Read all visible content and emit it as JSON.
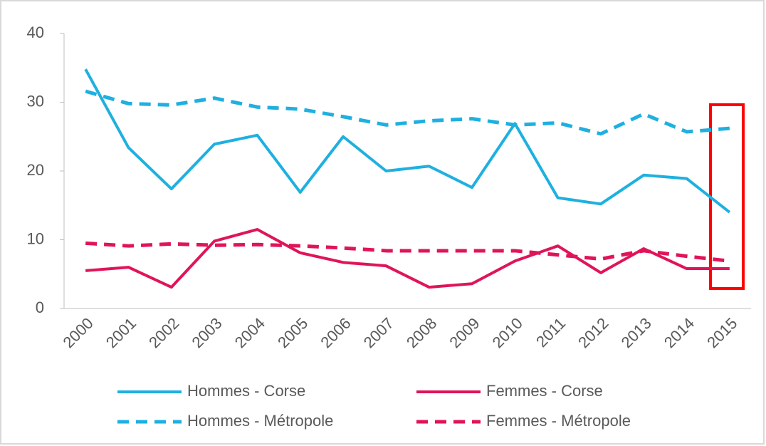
{
  "chart_data": {
    "type": "line",
    "categories": [
      "2000",
      "2001",
      "2002",
      "2003",
      "2004",
      "2005",
      "2006",
      "2007",
      "2008",
      "2009",
      "2010",
      "2011",
      "2012",
      "2013",
      "2014",
      "2015"
    ],
    "ylim": [
      0,
      40
    ],
    "yticks": [
      0,
      10,
      20,
      30,
      40
    ],
    "grid": false,
    "legend": "bottom",
    "series": [
      {
        "name": "Hommes - Corse",
        "color": "#1eb0e0",
        "dashed": false,
        "values": [
          34.8,
          23.4,
          17.4,
          23.9,
          25.2,
          16.9,
          25.0,
          20.0,
          20.7,
          17.6,
          26.9,
          16.1,
          15.2,
          19.4,
          18.9,
          14.0
        ]
      },
      {
        "name": "Femmes - Corse",
        "color": "#e0145a",
        "dashed": false,
        "values": [
          5.5,
          6.0,
          3.1,
          9.8,
          11.5,
          8.1,
          6.7,
          6.2,
          3.1,
          3.6,
          6.9,
          9.1,
          5.2,
          8.7,
          5.8,
          5.8
        ]
      },
      {
        "name": "Hommes - Métropole",
        "color": "#1eb0e0",
        "dashed": true,
        "values": [
          31.6,
          29.8,
          29.6,
          30.6,
          29.3,
          29.0,
          27.9,
          26.7,
          27.3,
          27.6,
          26.7,
          27.0,
          25.4,
          28.3,
          25.7,
          26.2
        ]
      },
      {
        "name": "Femmes - Métropole",
        "color": "#e0145a",
        "dashed": true,
        "values": [
          9.5,
          9.1,
          9.4,
          9.2,
          9.3,
          9.1,
          8.8,
          8.4,
          8.4,
          8.4,
          8.4,
          7.8,
          7.2,
          8.4,
          7.6,
          6.9
        ]
      }
    ]
  }
}
